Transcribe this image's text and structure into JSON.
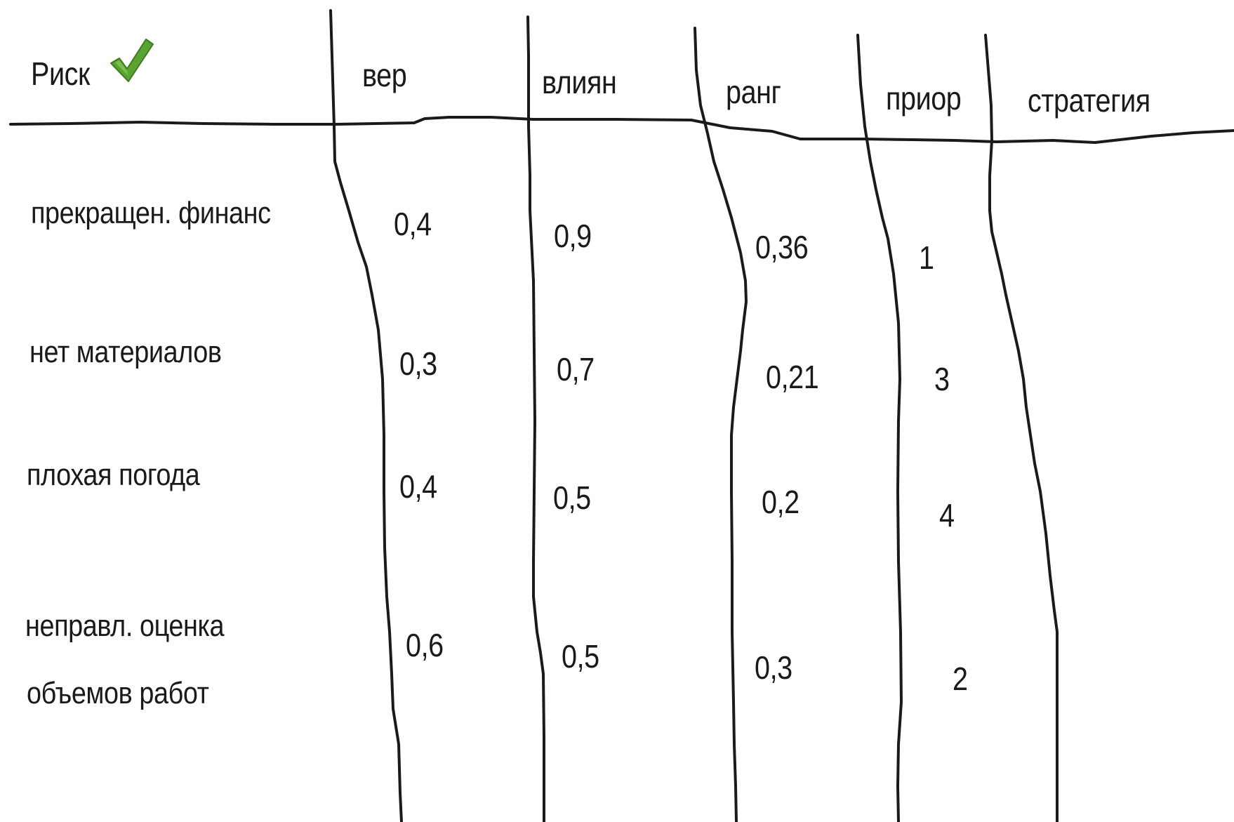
{
  "colors": {
    "ink": "#1a1a1a",
    "check_mark": "#5aa232",
    "check_mark_dark": "#3d7d1f",
    "background": "#ffffff"
  },
  "icons": {
    "header_check": "check-mark-icon"
  },
  "table": {
    "headers": {
      "risk": "Риск",
      "probability": "вер",
      "impact": "влиян",
      "rank": "ранг",
      "priority": "приор",
      "strategy": "стратегия"
    },
    "rows": [
      {
        "risk_line1": "прекращен. финанс",
        "risk_line2": "",
        "probability": "0,4",
        "impact": "0,9",
        "rank": "0,36",
        "priority": "1",
        "strategy": ""
      },
      {
        "risk_line1": "нет материалов",
        "risk_line2": "",
        "probability": "0,3",
        "impact": "0,7",
        "rank": "0,21",
        "priority": "3",
        "strategy": ""
      },
      {
        "risk_line1": "плохая погода",
        "risk_line2": "",
        "probability": "0,4",
        "impact": "0,5",
        "rank": "0,2",
        "priority": "4",
        "strategy": ""
      },
      {
        "risk_line1": "неправл. оценка",
        "risk_line2": "объемов работ",
        "probability": "0,6",
        "impact": "0,5",
        "rank": "0,3",
        "priority": "2",
        "strategy": ""
      }
    ]
  }
}
